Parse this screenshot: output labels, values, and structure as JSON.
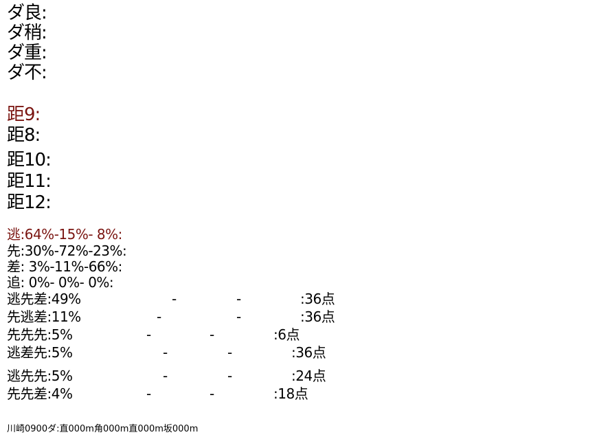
{
  "colors": {
    "highlight": "#7a1410",
    "text": "#000000",
    "background": "#ffffff"
  },
  "going": [
    {
      "label": "ダ良:"
    },
    {
      "label": "ダ稍:"
    },
    {
      "label": "ダ重:"
    },
    {
      "label": "ダ不:"
    }
  ],
  "distance": [
    {
      "label": "距9:",
      "highlight": true
    },
    {
      "label": "距8:"
    },
    {
      "label": "距10:"
    },
    {
      "label": "距11:"
    },
    {
      "label": "距12:"
    }
  ],
  "style": [
    {
      "label": "逃:64%-15%- 8%:",
      "highlight": true
    },
    {
      "label": "先:30%-72%-23%:"
    },
    {
      "label": "差: 3%-11%-66%:"
    },
    {
      "label": "追: 0%- 0%- 0%:"
    }
  ],
  "combos": [
    {
      "name": "逃先差:49%",
      "sep1": "-",
      "sep2": "-",
      "points": ":36点"
    },
    {
      "name": "先逃差:11%",
      "sep1": "-",
      "sep2": "-",
      "points": ":36点"
    },
    {
      "name": "先先先:5%",
      "sep1": "-",
      "sep2": "-",
      "points": ":6点"
    },
    {
      "name": "逃差先:5%",
      "sep1": "-",
      "sep2": "-",
      "points": ":36点"
    },
    {
      "name": "逃先先:5%",
      "sep1": "-",
      "sep2": "-",
      "points": ":24点"
    },
    {
      "name": "先先差:4%",
      "sep1": "-",
      "sep2": "-",
      "points": ":18点"
    }
  ],
  "footer": "川崎0900ダ:直000m角000m直000m坂000m"
}
